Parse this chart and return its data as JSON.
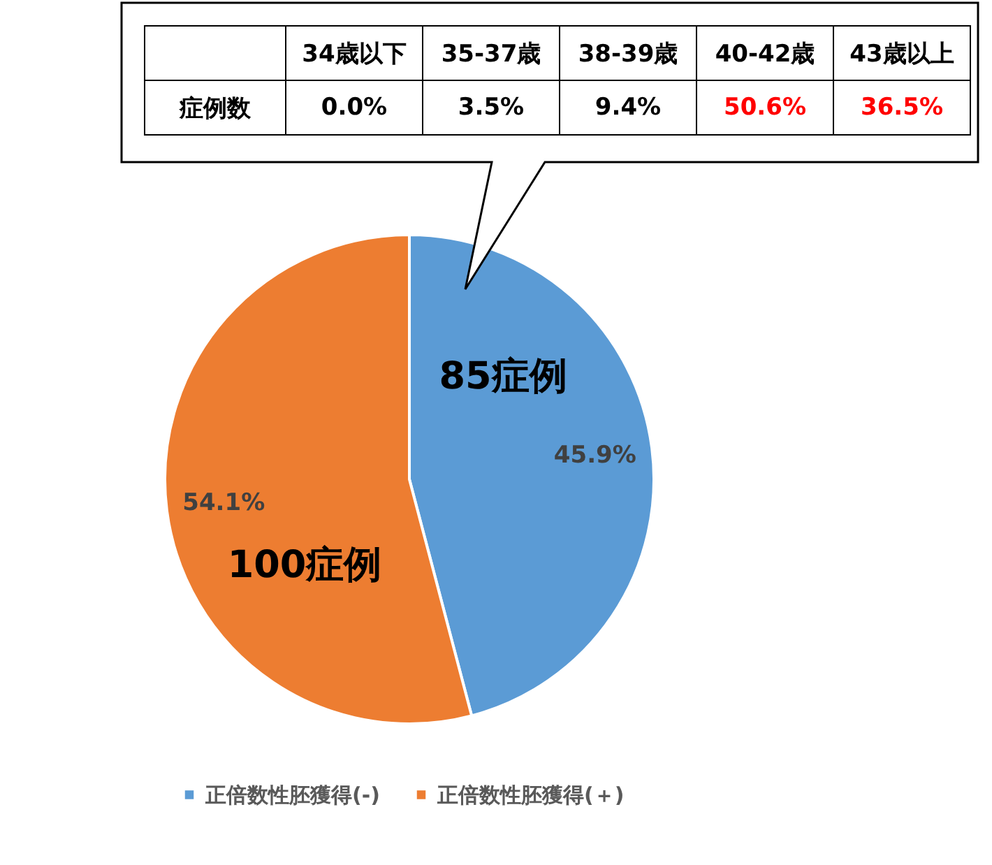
{
  "chart_data": {
    "type": "pie",
    "categories": [
      "正倍数性胚獲得(-)",
      "正倍数性胚獲得(＋)"
    ],
    "values": [
      45.9,
      54.1
    ],
    "colors": [
      "#5b9bd5",
      "#ed7d31"
    ],
    "value_labels": [
      "45.9%",
      "54.1%"
    ],
    "legend": "bottom",
    "annotations": [
      "85症例",
      "100症例",
      "症例数",
      "34歳以下",
      "35-37歳",
      "38-39歳",
      "40-42歳",
      "43歳以上",
      "0.0%",
      "3.5%",
      "9.4%",
      "50.6%",
      "36.5%"
    ]
  }
}
